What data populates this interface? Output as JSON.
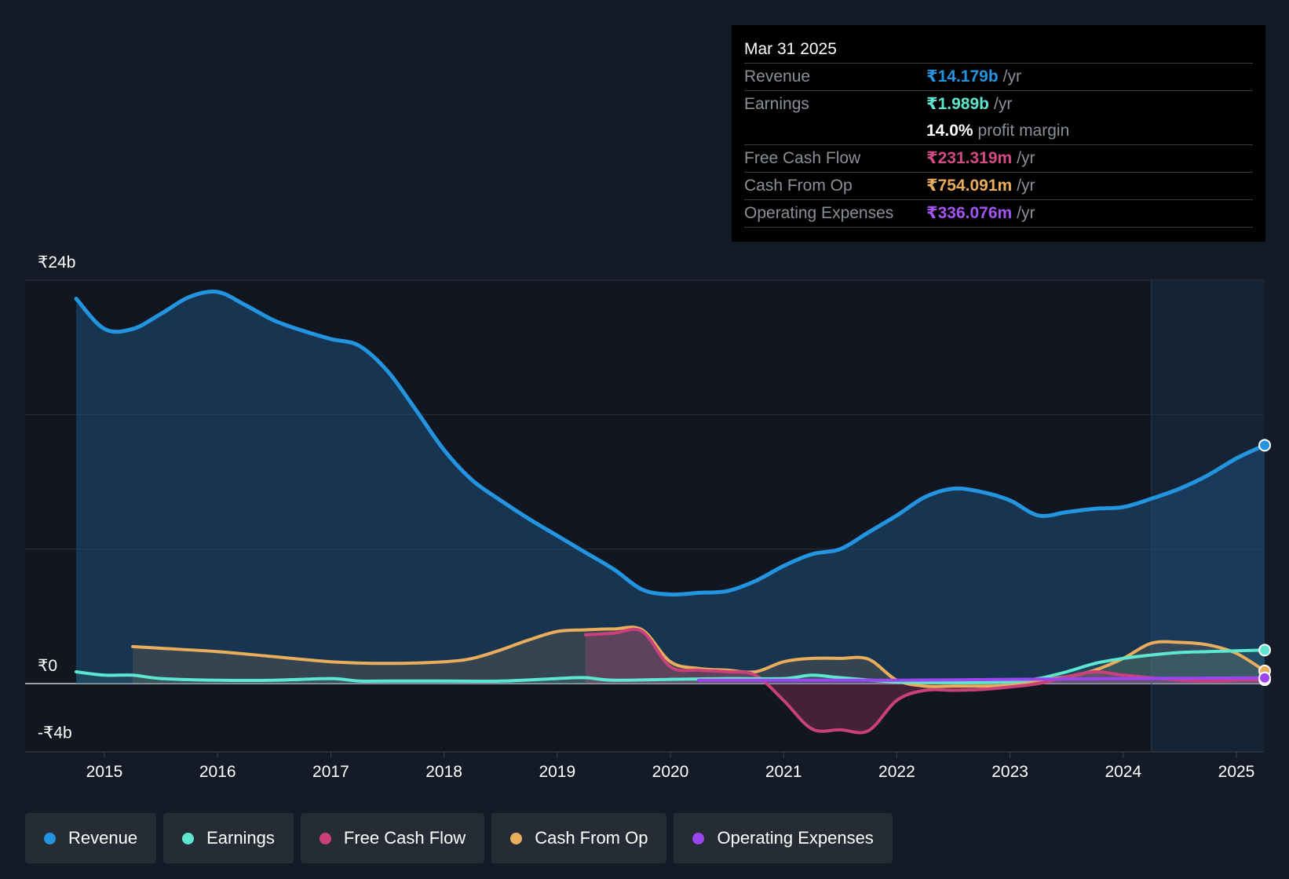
{
  "tooltip": {
    "date": "Mar 31 2025",
    "revenue": {
      "label": "Revenue",
      "value": "₹14.179b",
      "unit": "/yr"
    },
    "earnings": {
      "label": "Earnings",
      "value": "₹1.989b",
      "unit": "/yr"
    },
    "margin": {
      "value": "14.0%",
      "text": "profit margin"
    },
    "fcf": {
      "label": "Free Cash Flow",
      "value": "₹231.319m",
      "unit": "/yr"
    },
    "cfo": {
      "label": "Cash From Op",
      "value": "₹754.091m",
      "unit": "/yr"
    },
    "opex": {
      "label": "Operating Expenses",
      "value": "₹336.076m",
      "unit": "/yr"
    }
  },
  "legend": [
    {
      "label": "Revenue",
      "color": "#2394df"
    },
    {
      "label": "Earnings",
      "color": "#5ee7d0"
    },
    {
      "label": "Free Cash Flow",
      "color": "#c9407a"
    },
    {
      "label": "Cash From Op",
      "color": "#e9ad5c"
    },
    {
      "label": "Operating Expenses",
      "color": "#9b45ef"
    }
  ],
  "chart_data": {
    "type": "area",
    "title": "",
    "ylabel": "",
    "xlabel": "",
    "ylim": [
      -4,
      24
    ],
    "xlim": [
      2014.25,
      2025.25
    ],
    "y_tick_labels": [
      "₹24b",
      "₹0",
      "-₹4b"
    ],
    "y_tick_values": [
      24,
      0,
      -4
    ],
    "x_ticks": [
      "2015",
      "2016",
      "2017",
      "2018",
      "2019",
      "2020",
      "2021",
      "2022",
      "2023",
      "2024",
      "2025"
    ],
    "forecast_start": 2024.25,
    "colors": {
      "revenue": "#2394df",
      "earnings": "#5ee7d0",
      "fcf": "#c9407a",
      "cfo": "#e9ad5c",
      "opex": "#9b45ef"
    },
    "series": [
      {
        "name": "Revenue",
        "key": "revenue",
        "x": [
          2014.75,
          2015.0,
          2015.25,
          2015.5,
          2015.75,
          2016.0,
          2016.25,
          2016.5,
          2016.75,
          2017.0,
          2017.25,
          2017.5,
          2017.75,
          2018.0,
          2018.25,
          2018.5,
          2018.75,
          2019.0,
          2019.25,
          2019.5,
          2019.75,
          2020.0,
          2020.25,
          2020.5,
          2020.75,
          2021.0,
          2021.25,
          2021.5,
          2021.75,
          2022.0,
          2022.25,
          2022.5,
          2022.75,
          2023.0,
          2023.25,
          2023.5,
          2023.75,
          2024.0,
          2024.25,
          2024.5,
          2024.75,
          2025.0,
          2025.25
        ],
        "values": [
          22.9,
          21.1,
          21.1,
          22.0,
          23.0,
          23.3,
          22.5,
          21.6,
          21.0,
          20.5,
          20.1,
          18.6,
          16.3,
          13.9,
          12.1,
          10.9,
          9.8,
          8.8,
          7.8,
          6.8,
          5.6,
          5.3,
          5.4,
          5.5,
          6.1,
          7.0,
          7.7,
          8.0,
          9.0,
          10.0,
          11.1,
          11.6,
          11.4,
          10.9,
          10.0,
          10.2,
          10.4,
          10.5,
          11.0,
          11.6,
          12.4,
          13.4,
          14.179
        ]
      },
      {
        "name": "Earnings",
        "key": "earnings",
        "x": [
          2014.75,
          2015.0,
          2015.25,
          2015.5,
          2016.0,
          2016.5,
          2017.0,
          2017.25,
          2017.5,
          2018.0,
          2018.5,
          2019.0,
          2019.25,
          2019.5,
          2020.0,
          2020.5,
          2021.0,
          2021.25,
          2021.5,
          2022.0,
          2022.5,
          2023.0,
          2023.25,
          2023.5,
          2023.75,
          2024.0,
          2024.25,
          2024.5,
          2024.75,
          2025.0,
          2025.25
        ],
        "values": [
          0.7,
          0.5,
          0.5,
          0.3,
          0.2,
          0.2,
          0.3,
          0.15,
          0.15,
          0.15,
          0.15,
          0.3,
          0.35,
          0.2,
          0.25,
          0.3,
          0.3,
          0.5,
          0.35,
          0.1,
          0.05,
          0.1,
          0.3,
          0.7,
          1.2,
          1.5,
          1.7,
          1.85,
          1.9,
          1.95,
          1.989
        ]
      },
      {
        "name": "Free Cash Flow",
        "key": "fcf",
        "x": [
          2019.25,
          2019.5,
          2019.75,
          2020.0,
          2020.25,
          2020.5,
          2020.75,
          2021.0,
          2021.25,
          2021.5,
          2021.75,
          2022.0,
          2022.25,
          2022.5,
          2022.75,
          2023.0,
          2023.25,
          2023.5,
          2023.75,
          2024.0,
          2024.25,
          2024.5,
          2024.75,
          2025.0,
          2025.25
        ],
        "values": [
          2.9,
          3.0,
          3.1,
          1.0,
          0.8,
          0.7,
          0.5,
          -1.0,
          -2.7,
          -2.75,
          -2.8,
          -1.0,
          -0.4,
          -0.4,
          -0.35,
          -0.2,
          0.0,
          0.4,
          0.7,
          0.5,
          0.35,
          0.2,
          0.15,
          0.2,
          0.231
        ]
      },
      {
        "name": "Cash From Op",
        "key": "cfo",
        "x": [
          2015.25,
          2015.5,
          2016.0,
          2016.5,
          2017.0,
          2017.5,
          2018.0,
          2018.25,
          2018.5,
          2018.75,
          2019.0,
          2019.25,
          2019.5,
          2019.75,
          2020.0,
          2020.25,
          2020.5,
          2020.75,
          2021.0,
          2021.25,
          2021.5,
          2021.75,
          2022.0,
          2022.25,
          2022.5,
          2022.75,
          2023.0,
          2023.25,
          2023.5,
          2023.75,
          2024.0,
          2024.25,
          2024.5,
          2024.75,
          2025.0,
          2025.25
        ],
        "values": [
          2.2,
          2.1,
          1.9,
          1.6,
          1.3,
          1.2,
          1.3,
          1.5,
          2.0,
          2.6,
          3.1,
          3.2,
          3.25,
          3.2,
          1.3,
          0.9,
          0.8,
          0.7,
          1.3,
          1.5,
          1.5,
          1.45,
          0.2,
          -0.15,
          -0.15,
          -0.15,
          -0.1,
          0.2,
          0.4,
          0.8,
          1.5,
          2.4,
          2.45,
          2.3,
          1.8,
          0.754
        ]
      },
      {
        "name": "Operating Expenses",
        "key": "opex",
        "x": [
          2020.25,
          2021.0,
          2022.0,
          2023.0,
          2024.0,
          2025.0,
          2025.25
        ],
        "values": [
          0.2,
          0.2,
          0.2,
          0.25,
          0.3,
          0.33,
          0.336
        ]
      }
    ]
  }
}
